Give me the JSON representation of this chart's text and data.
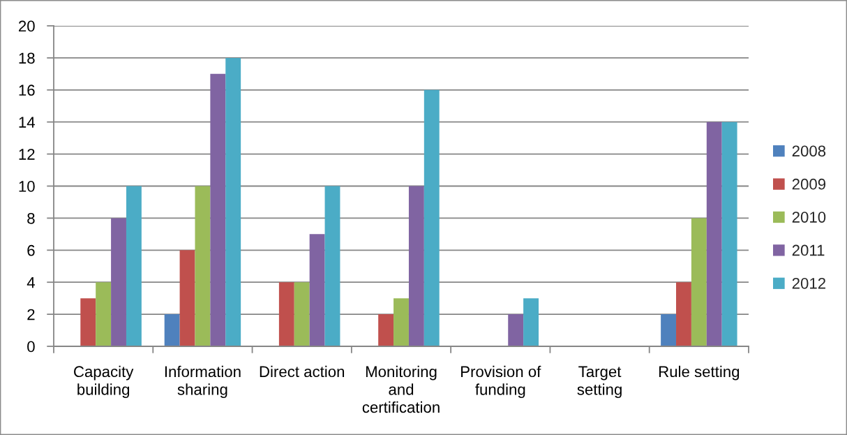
{
  "chart_data": {
    "type": "bar",
    "categories": [
      "Capacity\nbuilding",
      "Information\nsharing",
      "Direct action",
      "Monitoring\nand\ncertification",
      "Provision of\nfunding",
      "Target\nsetting",
      "Rule setting"
    ],
    "series": [
      {
        "name": "2008",
        "color": "#4f81bd",
        "values": [
          0,
          2,
          0,
          0,
          0,
          0,
          2
        ]
      },
      {
        "name": "2009",
        "color": "#c0504d",
        "values": [
          3,
          6,
          4,
          2,
          0,
          0,
          4
        ]
      },
      {
        "name": "2010",
        "color": "#9bbb59",
        "values": [
          4,
          10,
          4,
          3,
          0,
          0,
          8
        ]
      },
      {
        "name": "2011",
        "color": "#8064a2",
        "values": [
          8,
          17,
          7,
          10,
          2,
          0,
          14
        ]
      },
      {
        "name": "2012",
        "color": "#4bacc6",
        "values": [
          10,
          18,
          10,
          16,
          3,
          0,
          14
        ]
      }
    ],
    "ylim": [
      0,
      20
    ],
    "yticks": [
      0,
      2,
      4,
      6,
      8,
      10,
      12,
      14,
      16,
      18,
      20
    ],
    "grid": "y",
    "legend": "right"
  }
}
